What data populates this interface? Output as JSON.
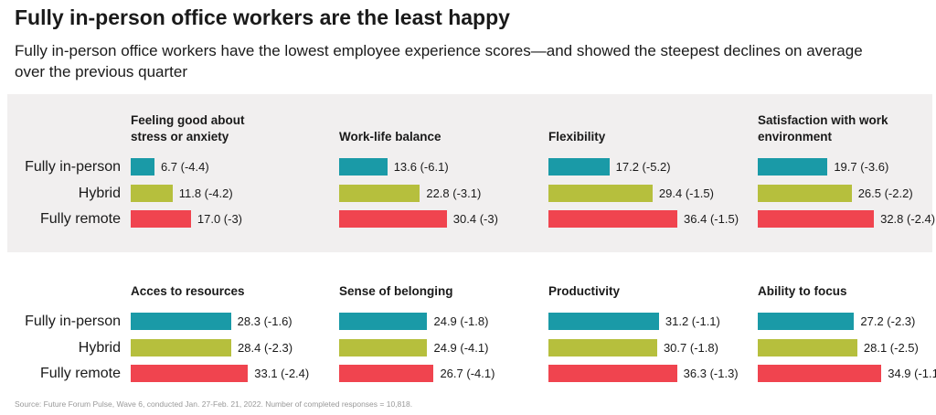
{
  "title": "Fully in-person office workers are the least happy",
  "subtitle": "Fully in-person office workers have the lowest employee experience scores—and showed the steepest declines on average over the previous quarter",
  "source": "Source: Future Forum Pulse, Wave 6, conducted Jan. 27-Feb. 21, 2022. Number of completed responses = 10,818.",
  "categories": [
    "Fully in-person",
    "Hybrid",
    "Fully remote"
  ],
  "colors": [
    "#1a9aa7",
    "#b6bf3d",
    "#f0444f"
  ],
  "xlim": [
    0,
    40
  ],
  "chart_data": [
    {
      "type": "bar",
      "title": "Feeling good about stress or anxiety",
      "values": [
        6.7,
        11.8,
        17.0
      ],
      "value_labels": [
        "6.7 (-4.4)",
        "11.8 (-4.2)",
        "17.0 (-3)"
      ]
    },
    {
      "type": "bar",
      "title": "Work-life balance",
      "values": [
        13.6,
        22.8,
        30.4
      ],
      "value_labels": [
        "13.6 (-6.1)",
        "22.8 (-3.1)",
        "30.4 (-3)"
      ]
    },
    {
      "type": "bar",
      "title": "Flexibility",
      "values": [
        17.2,
        29.4,
        36.4
      ],
      "value_labels": [
        "17.2 (-5.2)",
        "29.4 (-1.5)",
        "36.4 (-1.5)"
      ]
    },
    {
      "type": "bar",
      "title": "Satisfaction with work environment",
      "values": [
        19.7,
        26.5,
        32.8
      ],
      "value_labels": [
        "19.7 (-3.6)",
        "26.5 (-2.2)",
        "32.8 (-2.4)"
      ]
    },
    {
      "type": "bar",
      "title": "Acces to resources",
      "values": [
        28.3,
        28.4,
        33.1
      ],
      "value_labels": [
        "28.3 (-1.6)",
        "28.4 (-2.3)",
        "33.1 (-2.4)"
      ]
    },
    {
      "type": "bar",
      "title": "Sense of belonging",
      "values": [
        24.9,
        24.9,
        26.7
      ],
      "value_labels": [
        "24.9 (-1.8)",
        "24.9 (-4.1)",
        "26.7 (-4.1)"
      ]
    },
    {
      "type": "bar",
      "title": "Productivity",
      "values": [
        31.2,
        30.7,
        36.3
      ],
      "value_labels": [
        "31.2 (-1.1)",
        "30.7 (-1.8)",
        "36.3 (-1.3)"
      ]
    },
    {
      "type": "bar",
      "title": "Ability to focus",
      "values": [
        27.2,
        28.1,
        34.9
      ],
      "value_labels": [
        "27.2 (-2.3)",
        "28.1 (-2.5)",
        "34.9 (-1.1)"
      ]
    }
  ]
}
